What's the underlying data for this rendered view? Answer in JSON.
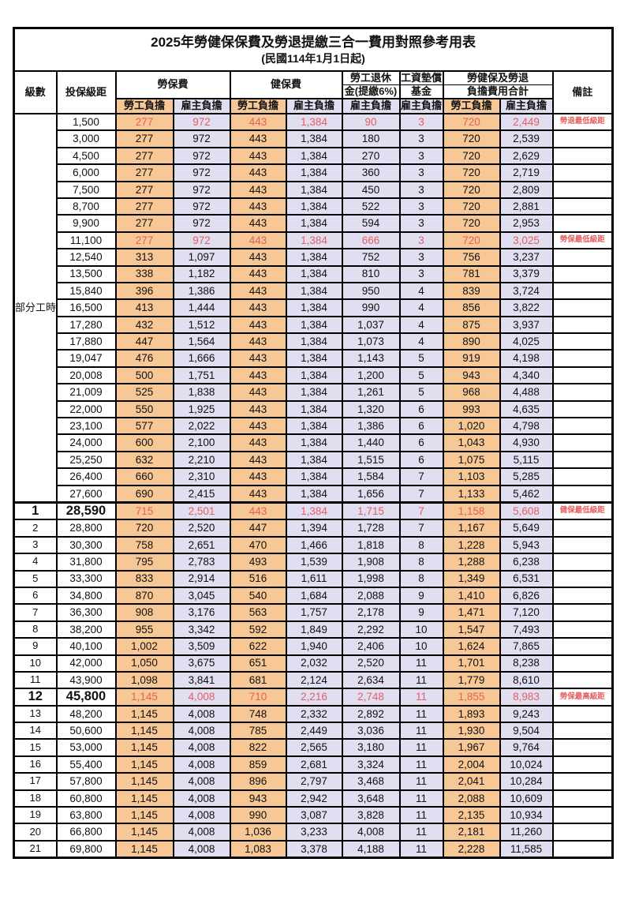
{
  "title": "2025年勞健保保費及勞退提繳三合一費用對照參考用表",
  "subtitle": "(民國114年1月1日起)",
  "colors": {
    "employee_bg": "#f7c795",
    "employer_bg": "#e0def0",
    "red_text": "#e45f5f",
    "border": "#000000"
  },
  "header": {
    "level": "級數",
    "bracket": "投保級距",
    "labor_fee": "勞保費",
    "health_fee": "健保費",
    "pension_line1": "勞工退休",
    "pension_line2": "金(提繳6%)",
    "wage_fund_line1": "工資墊償",
    "wage_fund_line2": "基金",
    "total_line1": "勞健保及勞退",
    "total_line2": "負擔費用合計",
    "remark": "備註",
    "employee": "勞工負擔",
    "employer": "雇主負擔"
  },
  "part_time_label": "部分工時",
  "rows": [
    {
      "bracket": "1,500",
      "values": [
        "277",
        "972",
        "443",
        "1,384",
        "90",
        "3",
        "720",
        "2,449"
      ],
      "red": true,
      "remark": "勞退最低級距"
    },
    {
      "bracket": "3,000",
      "values": [
        "277",
        "972",
        "443",
        "1,384",
        "180",
        "3",
        "720",
        "2,539"
      ]
    },
    {
      "bracket": "4,500",
      "values": [
        "277",
        "972",
        "443",
        "1,384",
        "270",
        "3",
        "720",
        "2,629"
      ]
    },
    {
      "bracket": "6,000",
      "values": [
        "277",
        "972",
        "443",
        "1,384",
        "360",
        "3",
        "720",
        "2,719"
      ]
    },
    {
      "bracket": "7,500",
      "values": [
        "277",
        "972",
        "443",
        "1,384",
        "450",
        "3",
        "720",
        "2,809"
      ]
    },
    {
      "bracket": "8,700",
      "values": [
        "277",
        "972",
        "443",
        "1,384",
        "522",
        "3",
        "720",
        "2,881"
      ]
    },
    {
      "bracket": "9,900",
      "values": [
        "277",
        "972",
        "443",
        "1,384",
        "594",
        "3",
        "720",
        "2,953"
      ]
    },
    {
      "bracket": "11,100",
      "values": [
        "277",
        "972",
        "443",
        "1,384",
        "666",
        "3",
        "720",
        "3,025"
      ],
      "red": true,
      "remark": "勞保最低級距"
    },
    {
      "bracket": "12,540",
      "values": [
        "313",
        "1,097",
        "443",
        "1,384",
        "752",
        "3",
        "756",
        "3,237"
      ]
    },
    {
      "bracket": "13,500",
      "values": [
        "338",
        "1,182",
        "443",
        "1,384",
        "810",
        "3",
        "781",
        "3,379"
      ]
    },
    {
      "bracket": "15,840",
      "values": [
        "396",
        "1,386",
        "443",
        "1,384",
        "950",
        "4",
        "839",
        "3,724"
      ]
    },
    {
      "bracket": "16,500",
      "values": [
        "413",
        "1,444",
        "443",
        "1,384",
        "990",
        "4",
        "856",
        "3,822"
      ]
    },
    {
      "bracket": "17,280",
      "values": [
        "432",
        "1,512",
        "443",
        "1,384",
        "1,037",
        "4",
        "875",
        "3,937"
      ]
    },
    {
      "bracket": "17,880",
      "values": [
        "447",
        "1,564",
        "443",
        "1,384",
        "1,073",
        "4",
        "890",
        "4,025"
      ]
    },
    {
      "bracket": "19,047",
      "values": [
        "476",
        "1,666",
        "443",
        "1,384",
        "1,143",
        "5",
        "919",
        "4,198"
      ]
    },
    {
      "bracket": "20,008",
      "values": [
        "500",
        "1,751",
        "443",
        "1,384",
        "1,200",
        "5",
        "943",
        "4,340"
      ]
    },
    {
      "bracket": "21,009",
      "values": [
        "525",
        "1,838",
        "443",
        "1,384",
        "1,261",
        "5",
        "968",
        "4,488"
      ]
    },
    {
      "bracket": "22,000",
      "values": [
        "550",
        "1,925",
        "443",
        "1,384",
        "1,320",
        "6",
        "993",
        "4,635"
      ]
    },
    {
      "bracket": "23,100",
      "values": [
        "577",
        "2,022",
        "443",
        "1,384",
        "1,386",
        "6",
        "1,020",
        "4,798"
      ]
    },
    {
      "bracket": "24,000",
      "values": [
        "600",
        "2,100",
        "443",
        "1,384",
        "1,440",
        "6",
        "1,043",
        "4,930"
      ]
    },
    {
      "bracket": "25,250",
      "values": [
        "632",
        "2,210",
        "443",
        "1,384",
        "1,515",
        "6",
        "1,075",
        "5,115"
      ]
    },
    {
      "bracket": "26,400",
      "values": [
        "660",
        "2,310",
        "443",
        "1,384",
        "1,584",
        "7",
        "1,103",
        "5,285"
      ]
    },
    {
      "bracket": "27,600",
      "values": [
        "690",
        "2,415",
        "443",
        "1,384",
        "1,656",
        "7",
        "1,133",
        "5,462"
      ]
    },
    {
      "level": "1",
      "bracket": "28,590",
      "values": [
        "715",
        "2,501",
        "443",
        "1,384",
        "1,715",
        "7",
        "1,158",
        "5,608"
      ],
      "red": true,
      "big": true,
      "section_start": true,
      "remark": "健保最低級距"
    },
    {
      "level": "2",
      "bracket": "28,800",
      "values": [
        "720",
        "2,520",
        "447",
        "1,394",
        "1,728",
        "7",
        "1,167",
        "5,649"
      ]
    },
    {
      "level": "3",
      "bracket": "30,300",
      "values": [
        "758",
        "2,651",
        "470",
        "1,466",
        "1,818",
        "8",
        "1,228",
        "5,943"
      ]
    },
    {
      "level": "4",
      "bracket": "31,800",
      "values": [
        "795",
        "2,783",
        "493",
        "1,539",
        "1,908",
        "8",
        "1,288",
        "6,238"
      ]
    },
    {
      "level": "5",
      "bracket": "33,300",
      "values": [
        "833",
        "2,914",
        "516",
        "1,611",
        "1,998",
        "8",
        "1,349",
        "6,531"
      ]
    },
    {
      "level": "6",
      "bracket": "34,800",
      "values": [
        "870",
        "3,045",
        "540",
        "1,684",
        "2,088",
        "9",
        "1,410",
        "6,826"
      ]
    },
    {
      "level": "7",
      "bracket": "36,300",
      "values": [
        "908",
        "3,176",
        "563",
        "1,757",
        "2,178",
        "9",
        "1,471",
        "7,120"
      ]
    },
    {
      "level": "8",
      "bracket": "38,200",
      "values": [
        "955",
        "3,342",
        "592",
        "1,849",
        "2,292",
        "10",
        "1,547",
        "7,493"
      ]
    },
    {
      "level": "9",
      "bracket": "40,100",
      "values": [
        "1,002",
        "3,509",
        "622",
        "1,940",
        "2,406",
        "10",
        "1,624",
        "7,865"
      ]
    },
    {
      "level": "10",
      "bracket": "42,000",
      "values": [
        "1,050",
        "3,675",
        "651",
        "2,032",
        "2,520",
        "11",
        "1,701",
        "8,238"
      ]
    },
    {
      "level": "11",
      "bracket": "43,900",
      "values": [
        "1,098",
        "3,841",
        "681",
        "2,124",
        "2,634",
        "11",
        "1,779",
        "8,610"
      ]
    },
    {
      "level": "12",
      "bracket": "45,800",
      "values": [
        "1,145",
        "4,008",
        "710",
        "2,216",
        "2,748",
        "11",
        "1,855",
        "8,983"
      ],
      "red": true,
      "big": true,
      "remark": "勞保最高級距"
    },
    {
      "level": "13",
      "bracket": "48,200",
      "values": [
        "1,145",
        "4,008",
        "748",
        "2,332",
        "2,892",
        "11",
        "1,893",
        "9,243"
      ]
    },
    {
      "level": "14",
      "bracket": "50,600",
      "values": [
        "1,145",
        "4,008",
        "785",
        "2,449",
        "3,036",
        "11",
        "1,930",
        "9,504"
      ]
    },
    {
      "level": "15",
      "bracket": "53,000",
      "values": [
        "1,145",
        "4,008",
        "822",
        "2,565",
        "3,180",
        "11",
        "1,967",
        "9,764"
      ]
    },
    {
      "level": "16",
      "bracket": "55,400",
      "values": [
        "1,145",
        "4,008",
        "859",
        "2,681",
        "3,324",
        "11",
        "2,004",
        "10,024"
      ]
    },
    {
      "level": "17",
      "bracket": "57,800",
      "values": [
        "1,145",
        "4,008",
        "896",
        "2,797",
        "3,468",
        "11",
        "2,041",
        "10,284"
      ]
    },
    {
      "level": "18",
      "bracket": "60,800",
      "values": [
        "1,145",
        "4,008",
        "943",
        "2,942",
        "3,648",
        "11",
        "2,088",
        "10,609"
      ]
    },
    {
      "level": "19",
      "bracket": "63,800",
      "values": [
        "1,145",
        "4,008",
        "990",
        "3,087",
        "3,828",
        "11",
        "2,135",
        "10,934"
      ]
    },
    {
      "level": "20",
      "bracket": "66,800",
      "values": [
        "1,145",
        "4,008",
        "1,036",
        "3,233",
        "4,008",
        "11",
        "2,181",
        "11,260"
      ]
    },
    {
      "level": "21",
      "bracket": "69,800",
      "values": [
        "1,145",
        "4,008",
        "1,083",
        "3,378",
        "4,188",
        "11",
        "2,228",
        "11,585"
      ]
    }
  ]
}
